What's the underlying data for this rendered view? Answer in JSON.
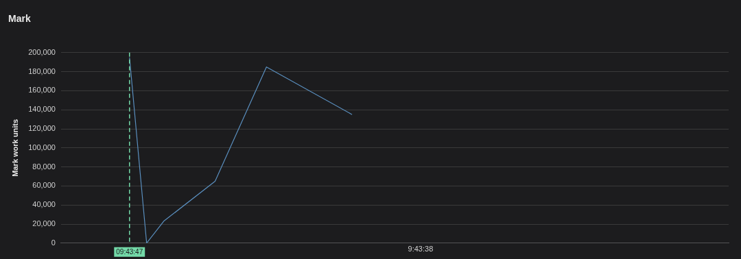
{
  "chart_data": {
    "type": "line",
    "title": "Mark",
    "ylabel": "Mark work units",
    "categories": [
      null,
      null,
      null,
      null,
      "09:43:47",
      null,
      null,
      null,
      null,
      null,
      null,
      null,
      null,
      null,
      null,
      null,
      null,
      null,
      null,
      null,
      null,
      "9:43:38",
      null,
      null,
      null,
      null,
      null,
      null,
      null,
      null,
      null,
      null,
      null,
      null,
      null,
      null,
      null,
      null,
      null,
      null
    ],
    "series": [
      {
        "color": "#5a8fbf",
        "values": [
          null,
          null,
          null,
          null,
          195000,
          0,
          23000,
          null,
          null,
          65000,
          null,
          null,
          185000,
          null,
          null,
          null,
          null,
          135000,
          null,
          null,
          null,
          null,
          null,
          null,
          null,
          null,
          null,
          null,
          null,
          null,
          null,
          null,
          null,
          null,
          null,
          null,
          null,
          null,
          null,
          null
        ]
      }
    ],
    "ylim": [
      0,
      200000
    ],
    "yticks": [
      {
        "value": 0,
        "label": "0"
      },
      {
        "value": 20000,
        "label": "20,000"
      },
      {
        "value": 40000,
        "label": "40,000"
      },
      {
        "value": 60000,
        "label": "60,000"
      },
      {
        "value": 80000,
        "label": "80,000"
      },
      {
        "value": 100000,
        "label": "100,000"
      },
      {
        "value": 120000,
        "label": "120,000"
      },
      {
        "value": 140000,
        "label": "140,000"
      },
      {
        "value": 160000,
        "label": "160,000"
      },
      {
        "value": 180000,
        "label": "180,000"
      },
      {
        "value": 200000,
        "label": "200,000"
      }
    ],
    "ref_lines": [
      {
        "axis": "x",
        "value": "09:43:47",
        "color": "#73d9a8",
        "line_style": "dashed"
      }
    ],
    "grid": "y",
    "legend": false,
    "marker": "none",
    "line_style": "solid"
  }
}
